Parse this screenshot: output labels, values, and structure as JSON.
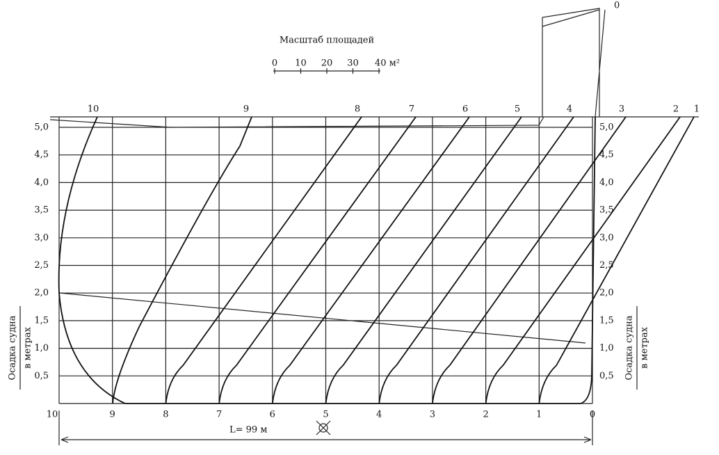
{
  "scale": {
    "title": "Масштаб площадей",
    "ticks": [
      "0",
      "10",
      "20",
      "30",
      "40 м²"
    ]
  },
  "draft_labels": [
    "5,0",
    "4,5",
    "4,0",
    "3,5",
    "3,0",
    "2,5",
    "2,0",
    "1,5",
    "1,0",
    "0,5"
  ],
  "station_labels": [
    "10",
    "9",
    "8",
    "7",
    "6",
    "5",
    "4",
    "3",
    "2",
    "1",
    "0"
  ],
  "curve_labels": [
    "10",
    "9",
    "8",
    "7",
    "6",
    "5",
    "4",
    "3",
    "2",
    "1"
  ],
  "top_label": "0",
  "axis_title": {
    "line1": "Осадка судна",
    "line2": "в метрах"
  },
  "length_label": "L= 99 м"
}
